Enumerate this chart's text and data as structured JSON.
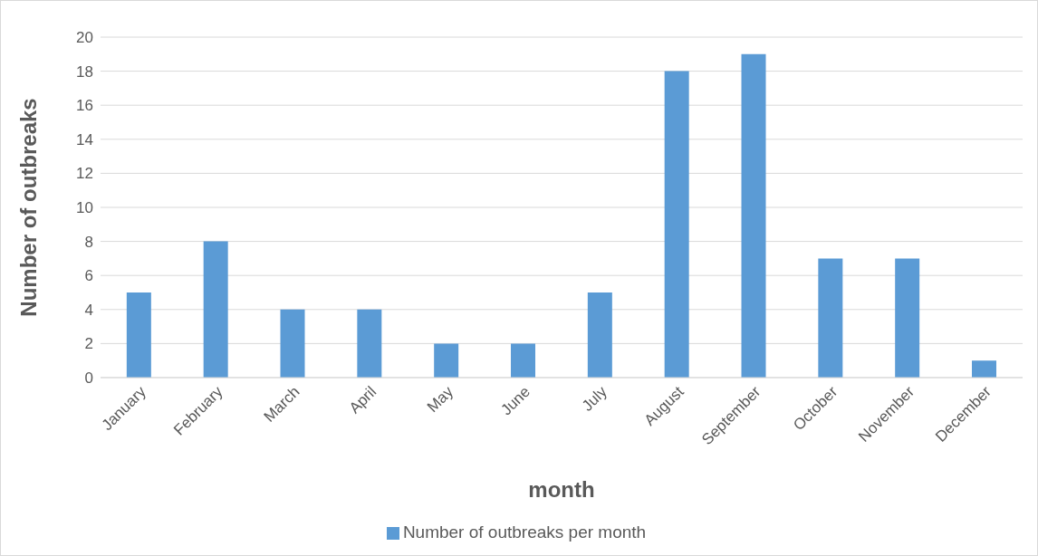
{
  "chart_data": {
    "type": "bar",
    "xlabel": "month",
    "ylabel": "Number of outbreaks",
    "categories": [
      "January",
      "February",
      "March",
      "April",
      "May",
      "June",
      "July",
      "August",
      "September",
      "October",
      "November",
      "December"
    ],
    "series": [
      {
        "name": "Number of outbreaks per month",
        "color": "#5b9bd5",
        "values": [
          5,
          8,
          4,
          4,
          2,
          2,
          5,
          18,
          19,
          7,
          7,
          1
        ]
      }
    ],
    "ylim": [
      0,
      20
    ],
    "yticks": [
      0,
      2,
      4,
      6,
      8,
      10,
      12,
      14,
      16,
      18,
      20
    ],
    "grid": "y",
    "legend": "bottom"
  }
}
